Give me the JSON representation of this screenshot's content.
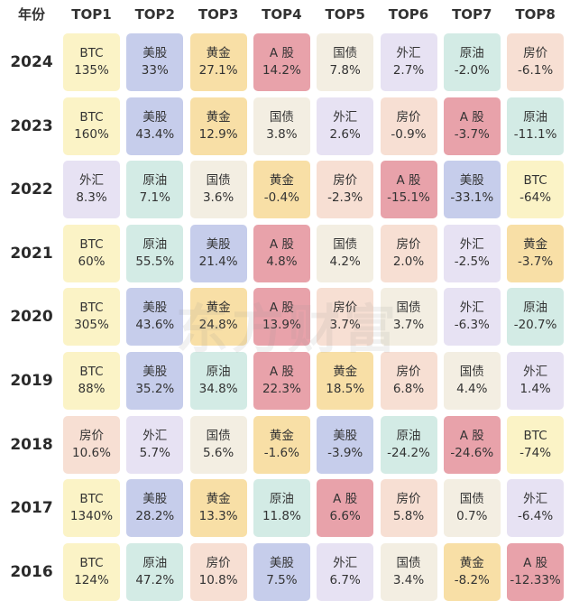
{
  "table": {
    "header": [
      "年份",
      "TOP1",
      "TOP2",
      "TOP3",
      "TOP4",
      "TOP5",
      "TOP6",
      "TOP7",
      "TOP8"
    ],
    "asset_colors": {
      "BTC": "#fbf3c6",
      "美股": "#c6cdeb",
      "黄金": "#f8dfa6",
      "A 股": "#e8a2aa",
      "国债": "#f3eee2",
      "外汇": "#e7e2f3",
      "原油": "#d3ebe5",
      "房价": "#f7dfd3"
    },
    "rows": [
      {
        "year": "2024",
        "cells": [
          {
            "asset": "BTC",
            "return": "135%"
          },
          {
            "asset": "美股",
            "return": "33%"
          },
          {
            "asset": "黄金",
            "return": "27.1%"
          },
          {
            "asset": "A 股",
            "return": "14.2%"
          },
          {
            "asset": "国债",
            "return": "7.8%"
          },
          {
            "asset": "外汇",
            "return": "2.7%"
          },
          {
            "asset": "原油",
            "return": "-2.0%"
          },
          {
            "asset": "房价",
            "return": "-6.1%"
          }
        ]
      },
      {
        "year": "2023",
        "cells": [
          {
            "asset": "BTC",
            "return": "160%"
          },
          {
            "asset": "美股",
            "return": "43.4%"
          },
          {
            "asset": "黄金",
            "return": "12.9%"
          },
          {
            "asset": "国债",
            "return": "3.8%"
          },
          {
            "asset": "外汇",
            "return": "2.6%"
          },
          {
            "asset": "房价",
            "return": "-0.9%"
          },
          {
            "asset": "A 股",
            "return": "-3.7%"
          },
          {
            "asset": "原油",
            "return": "-11.1%"
          }
        ]
      },
      {
        "year": "2022",
        "cells": [
          {
            "asset": "外汇",
            "return": "8.3%"
          },
          {
            "asset": "原油",
            "return": "7.1%"
          },
          {
            "asset": "国债",
            "return": "3.6%"
          },
          {
            "asset": "黄金",
            "return": "-0.4%"
          },
          {
            "asset": "房价",
            "return": "-2.3%"
          },
          {
            "asset": "A 股",
            "return": "-15.1%"
          },
          {
            "asset": "美股",
            "return": "-33.1%"
          },
          {
            "asset": "BTC",
            "return": "-64%"
          }
        ]
      },
      {
        "year": "2021",
        "cells": [
          {
            "asset": "BTC",
            "return": "60%"
          },
          {
            "asset": "原油",
            "return": "55.5%"
          },
          {
            "asset": "美股",
            "return": "21.4%"
          },
          {
            "asset": "A 股",
            "return": "4.8%"
          },
          {
            "asset": "国债",
            "return": "4.2%"
          },
          {
            "asset": "房价",
            "return": "2.0%"
          },
          {
            "asset": "外汇",
            "return": "-2.5%"
          },
          {
            "asset": "黄金",
            "return": "-3.7%"
          }
        ]
      },
      {
        "year": "2020",
        "cells": [
          {
            "asset": "BTC",
            "return": "305%"
          },
          {
            "asset": "美股",
            "return": "43.6%"
          },
          {
            "asset": "黄金",
            "return": "24.8%"
          },
          {
            "asset": "A 股",
            "return": "13.9%"
          },
          {
            "asset": "房价",
            "return": "3.7%"
          },
          {
            "asset": "国债",
            "return": "3.7%"
          },
          {
            "asset": "外汇",
            "return": "-6.3%"
          },
          {
            "asset": "原油",
            "return": "-20.7%"
          }
        ]
      },
      {
        "year": "2019",
        "cells": [
          {
            "asset": "BTC",
            "return": "88%"
          },
          {
            "asset": "美股",
            "return": "35.2%"
          },
          {
            "asset": "原油",
            "return": "34.8%"
          },
          {
            "asset": "A 股",
            "return": "22.3%"
          },
          {
            "asset": "黄金",
            "return": "18.5%"
          },
          {
            "asset": "房价",
            "return": "6.8%"
          },
          {
            "asset": "国债",
            "return": "4.4%"
          },
          {
            "asset": "外汇",
            "return": "1.4%"
          }
        ]
      },
      {
        "year": "2018",
        "cells": [
          {
            "asset": "房价",
            "return": "10.6%"
          },
          {
            "asset": "外汇",
            "return": "5.7%"
          },
          {
            "asset": "国债",
            "return": "5.6%"
          },
          {
            "asset": "黄金",
            "return": "-1.6%"
          },
          {
            "asset": "美股",
            "return": "-3.9%"
          },
          {
            "asset": "原油",
            "return": "-24.2%"
          },
          {
            "asset": "A 股",
            "return": "-24.6%"
          },
          {
            "asset": "BTC",
            "return": "-74%"
          }
        ]
      },
      {
        "year": "2017",
        "cells": [
          {
            "asset": "BTC",
            "return": "1340%"
          },
          {
            "asset": "美股",
            "return": "28.2%"
          },
          {
            "asset": "黄金",
            "return": "13.3%"
          },
          {
            "asset": "原油",
            "return": "11.8%"
          },
          {
            "asset": "A 股",
            "return": "6.6%"
          },
          {
            "asset": "房价",
            "return": "5.8%"
          },
          {
            "asset": "国债",
            "return": "0.7%"
          },
          {
            "asset": "外汇",
            "return": "-6.4%"
          }
        ]
      },
      {
        "year": "2016",
        "cells": [
          {
            "asset": "BTC",
            "return": "124%"
          },
          {
            "asset": "原油",
            "return": "47.2%"
          },
          {
            "asset": "房价",
            "return": "10.8%"
          },
          {
            "asset": "美股",
            "return": "7.5%"
          },
          {
            "asset": "外汇",
            "return": "6.7%"
          },
          {
            "asset": "国债",
            "return": "3.4%"
          },
          {
            "asset": "黄金",
            "return": "-8.2%"
          },
          {
            "asset": "A 股",
            "return": "-12.33%"
          }
        ]
      }
    ],
    "watermark": "东方财富"
  }
}
